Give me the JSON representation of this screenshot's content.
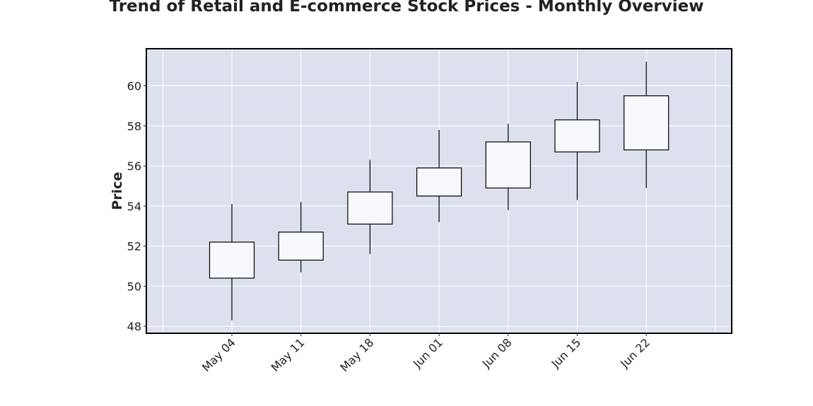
{
  "chart_data": {
    "type": "candlestick",
    "title": "Trend of Retail and E-commerce Stock Prices - Monthly Overview",
    "xlabel": "",
    "ylabel": "Price",
    "categories": [
      "May 04",
      "May 11",
      "May 18",
      "Jun 01",
      "Jun 08",
      "Jun 15",
      "Jun 22"
    ],
    "open": [
      50.4,
      51.3,
      53.1,
      54.5,
      54.9,
      56.7,
      56.8
    ],
    "close": [
      52.2,
      52.7,
      54.7,
      55.9,
      57.2,
      58.3,
      59.5
    ],
    "high": [
      54.1,
      54.2,
      56.3,
      57.8,
      58.1,
      60.2,
      61.2
    ],
    "low": [
      48.3,
      50.7,
      51.6,
      53.2,
      53.8,
      54.3,
      54.9
    ],
    "ylim": [
      47.65,
      61.85
    ],
    "yticks": [
      48,
      50,
      52,
      54,
      56,
      58,
      60
    ],
    "grid": true,
    "colors": {
      "plot_background": "#dde1ee",
      "grid": "#ffffff",
      "candle_fill": "#f8f9fd",
      "candle_edge": "#000000"
    }
  }
}
